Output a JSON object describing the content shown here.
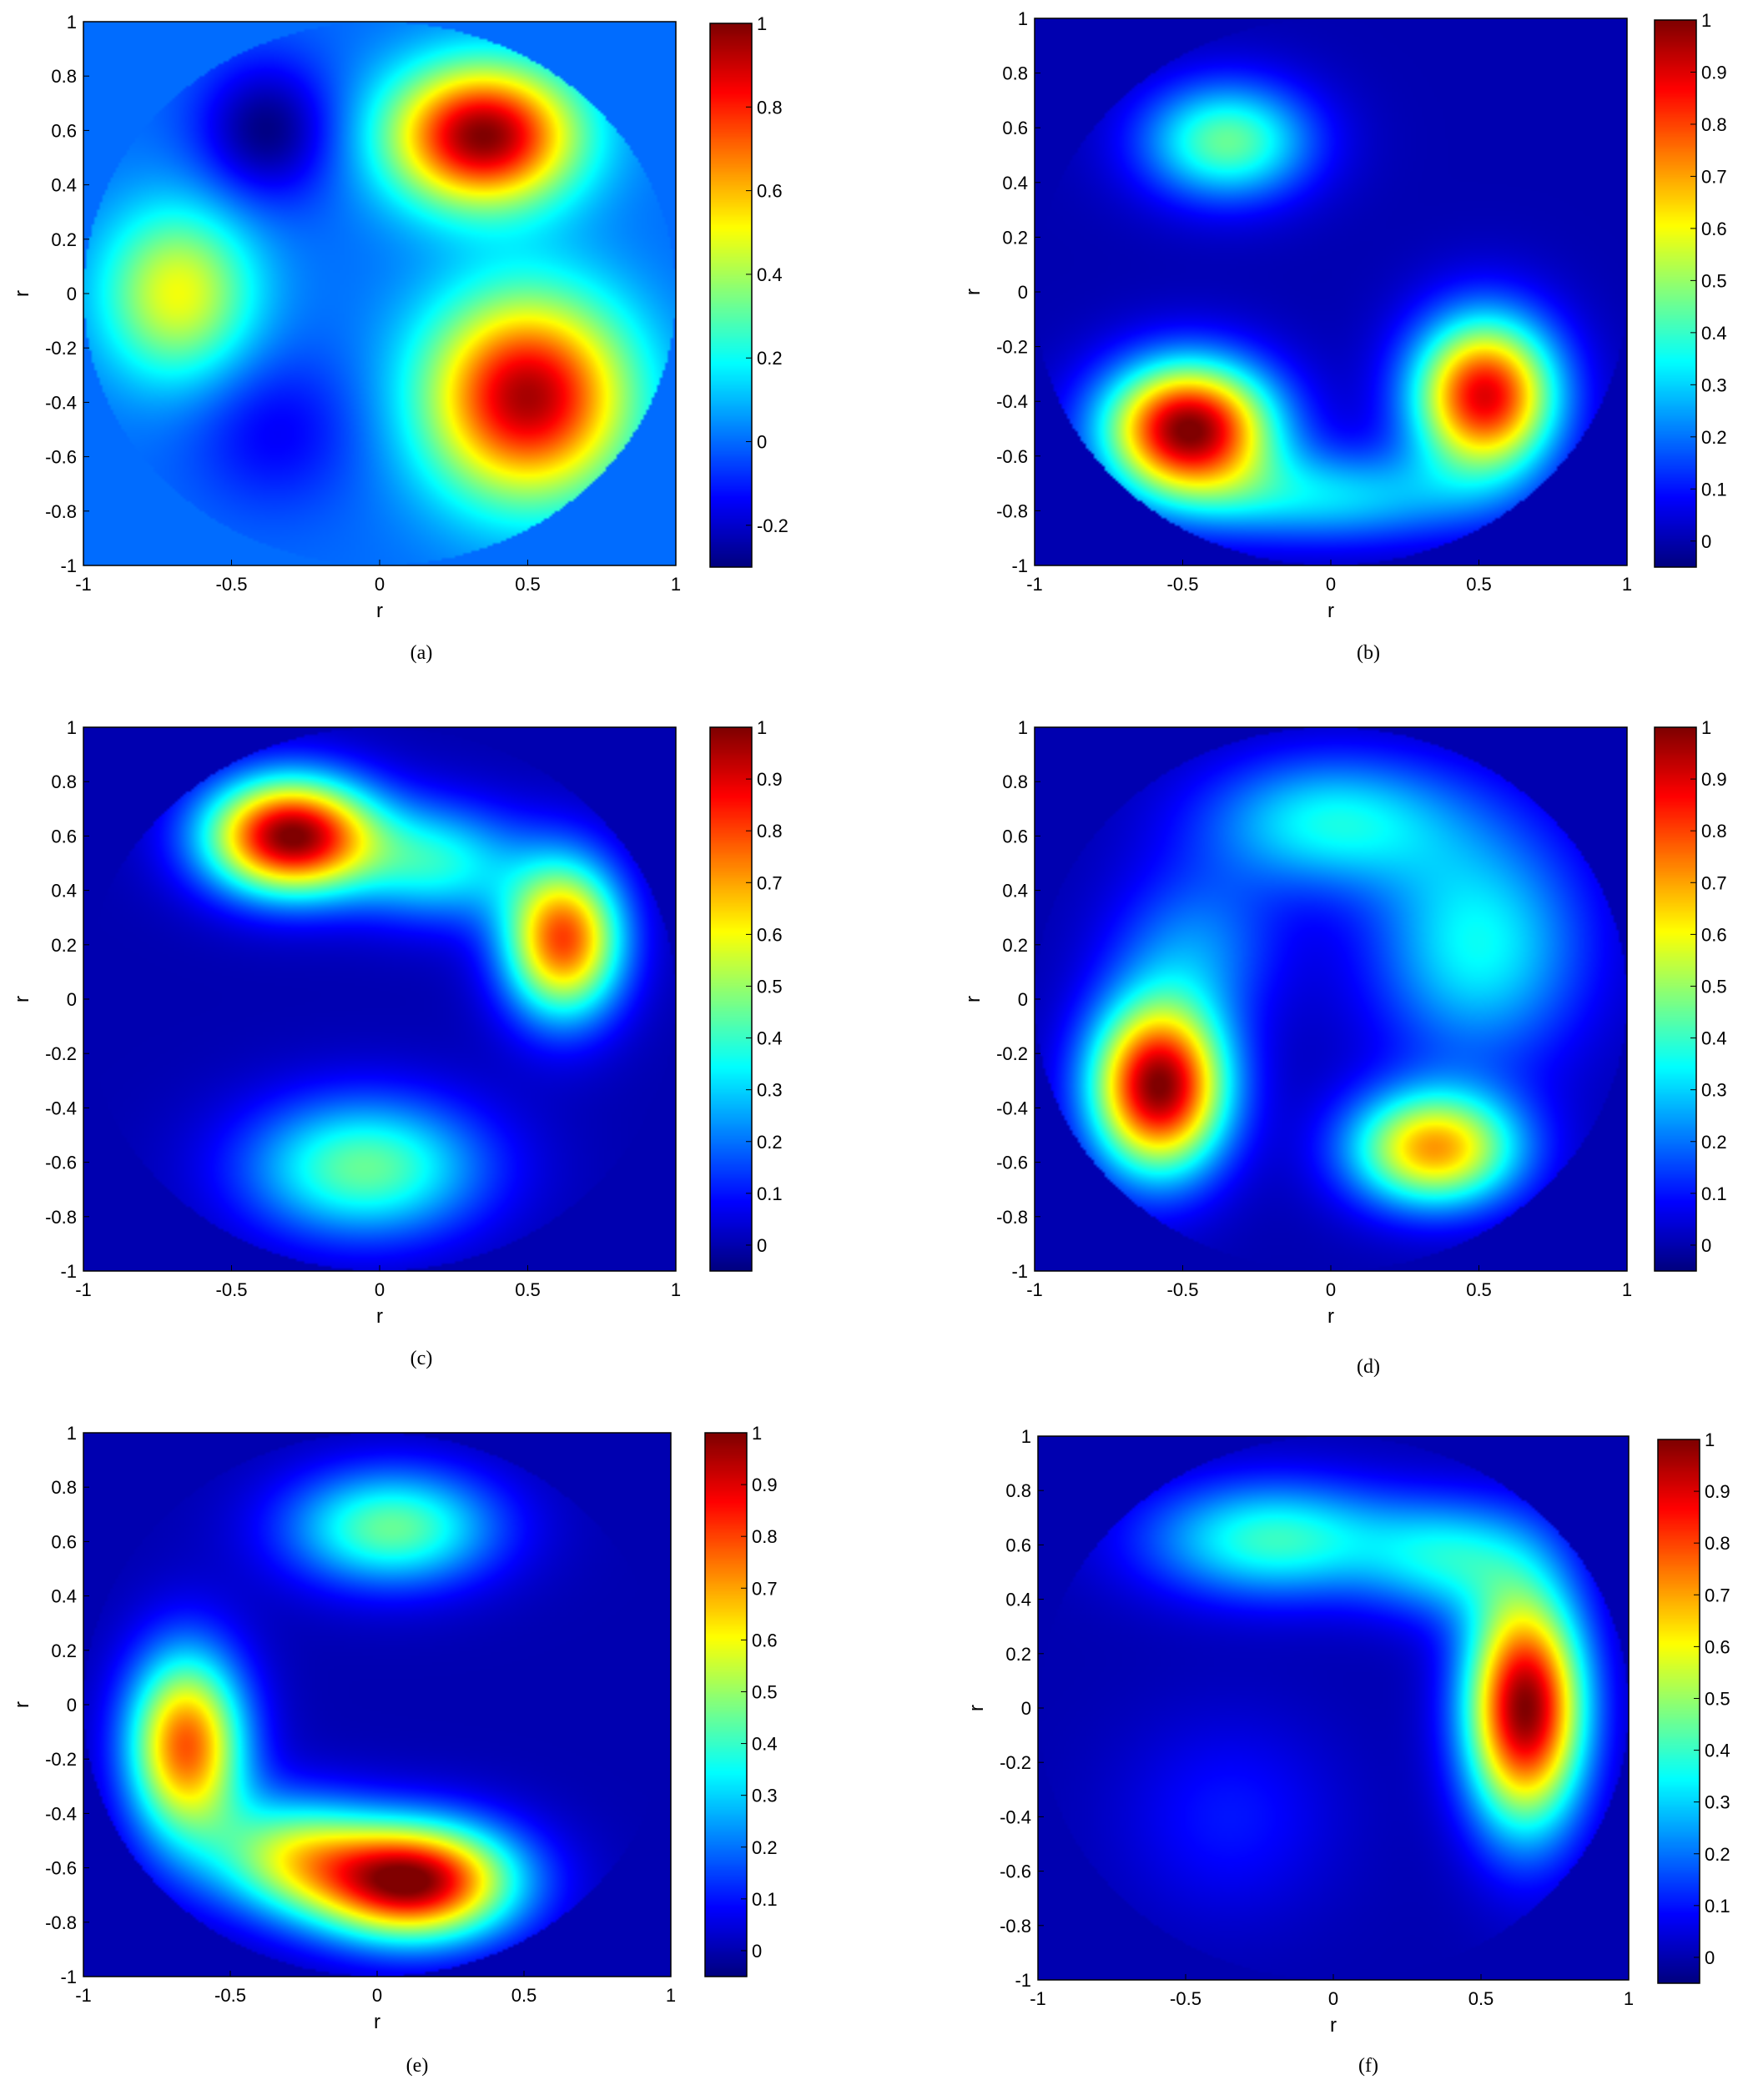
{
  "figure": {
    "panels_label": "Six heat-map panels (a)–(f)"
  },
  "colormap": "jet",
  "chart_data": [
    {
      "type": "heatmap",
      "caption": "(a)",
      "xlabel": "r",
      "ylabel": "r",
      "xlim": [
        -1,
        1
      ],
      "ylim": [
        -1,
        1
      ],
      "xticks": [
        "-1",
        "-0.5",
        "0",
        "0.5",
        "1"
      ],
      "yticks": [
        "1",
        "0.8",
        "0.6",
        "0.4",
        "0.2",
        "0",
        "-0.2",
        "-0.4",
        "-0.6",
        "-0.8",
        "-1"
      ],
      "colorbar": {
        "min": -0.3,
        "max": 1.0,
        "ticks": [
          "1",
          "0.8",
          "0.6",
          "0.4",
          "0.2",
          "0",
          "-0.2"
        ]
      },
      "outside_value": 0.0,
      "peaks": [
        {
          "x": 0.35,
          "y": 0.58,
          "value": 1.0,
          "sx": 0.22,
          "sy": 0.18
        },
        {
          "x": 0.5,
          "y": -0.38,
          "value": 0.95,
          "sx": 0.24,
          "sy": 0.26
        },
        {
          "x": -0.68,
          "y": 0.0,
          "value": 0.5,
          "sx": 0.18,
          "sy": 0.22
        },
        {
          "x": -0.38,
          "y": 0.6,
          "value": -0.3,
          "sx": 0.16,
          "sy": 0.18
        },
        {
          "x": -0.35,
          "y": -0.5,
          "value": -0.15,
          "sx": 0.2,
          "sy": 0.2
        }
      ]
    },
    {
      "type": "heatmap",
      "caption": "(b)",
      "xlabel": "r",
      "ylabel": "r",
      "xlim": [
        -1,
        1
      ],
      "ylim": [
        -1,
        1
      ],
      "xticks": [
        "-1",
        "-0.5",
        "0",
        "0.5",
        "1"
      ],
      "yticks": [
        "1",
        "0.8",
        "0.6",
        "0.4",
        "0.2",
        "0",
        "-0.2",
        "-0.4",
        "-0.6",
        "-0.8",
        "-1"
      ],
      "colorbar": {
        "min": -0.05,
        "max": 1.0,
        "ticks": [
          "1",
          "0.9",
          "0.8",
          "0.7",
          "0.6",
          "0.5",
          "0.4",
          "0.3",
          "0.2",
          "0.1",
          "0"
        ]
      },
      "outside_value": 0.0,
      "peaks": [
        {
          "x": -0.48,
          "y": -0.5,
          "value": 1.0,
          "sx": 0.2,
          "sy": 0.17
        },
        {
          "x": 0.52,
          "y": -0.38,
          "value": 0.9,
          "sx": 0.17,
          "sy": 0.2
        },
        {
          "x": -0.35,
          "y": 0.55,
          "value": 0.45,
          "sx": 0.2,
          "sy": 0.15
        },
        {
          "x": 0.0,
          "y": -0.75,
          "value": 0.3,
          "sx": 0.35,
          "sy": 0.12
        }
      ]
    },
    {
      "type": "heatmap",
      "caption": "(c)",
      "xlabel": "r",
      "ylabel": "r",
      "xlim": [
        -1,
        1
      ],
      "ylim": [
        -1,
        1
      ],
      "xticks": [
        "-1",
        "-0.5",
        "0",
        "0.5",
        "1"
      ],
      "yticks": [
        "1",
        "0.8",
        "0.6",
        "0.4",
        "0.2",
        "0",
        "-0.2",
        "-0.4",
        "-0.6",
        "-0.8",
        "-1"
      ],
      "colorbar": {
        "min": -0.05,
        "max": 1.0,
        "ticks": [
          "1",
          "0.9",
          "0.8",
          "0.7",
          "0.6",
          "0.5",
          "0.4",
          "0.3",
          "0.2",
          "0.1",
          "0"
        ]
      },
      "outside_value": 0.0,
      "peaks": [
        {
          "x": -0.3,
          "y": 0.6,
          "value": 1.0,
          "sx": 0.2,
          "sy": 0.15
        },
        {
          "x": 0.62,
          "y": 0.22,
          "value": 0.8,
          "sx": 0.14,
          "sy": 0.2
        },
        {
          "x": -0.05,
          "y": -0.62,
          "value": 0.45,
          "sx": 0.28,
          "sy": 0.18
        },
        {
          "x": 0.2,
          "y": 0.5,
          "value": 0.35,
          "sx": 0.2,
          "sy": 0.15
        }
      ]
    },
    {
      "type": "heatmap",
      "caption": "(d)",
      "xlabel": "r",
      "ylabel": "r",
      "xlim": [
        -1,
        1
      ],
      "ylim": [
        -1,
        1
      ],
      "xticks": [
        "-1",
        "-0.5",
        "0",
        "0.5",
        "1"
      ],
      "yticks": [
        "1",
        "0.8",
        "0.6",
        "0.4",
        "0.2",
        "0",
        "-0.2",
        "-0.4",
        "-0.6",
        "-0.8",
        "-1"
      ],
      "colorbar": {
        "min": -0.05,
        "max": 1.0,
        "ticks": [
          "1",
          "0.9",
          "0.8",
          "0.7",
          "0.6",
          "0.5",
          "0.4",
          "0.3",
          "0.2",
          "0.1",
          "0"
        ]
      },
      "outside_value": 0.0,
      "peaks": [
        {
          "x": -0.58,
          "y": -0.32,
          "value": 1.0,
          "sx": 0.16,
          "sy": 0.22
        },
        {
          "x": 0.35,
          "y": -0.55,
          "value": 0.7,
          "sx": 0.2,
          "sy": 0.15
        },
        {
          "x": 0.5,
          "y": 0.2,
          "value": 0.35,
          "sx": 0.25,
          "sy": 0.3
        },
        {
          "x": 0.0,
          "y": 0.65,
          "value": 0.35,
          "sx": 0.3,
          "sy": 0.17
        },
        {
          "x": -0.45,
          "y": 0.2,
          "value": 0.2,
          "sx": 0.2,
          "sy": 0.2
        }
      ]
    },
    {
      "type": "heatmap",
      "caption": "(e)",
      "xlabel": "r",
      "ylabel": "r",
      "xlim": [
        -1,
        1
      ],
      "ylim": [
        -1,
        1
      ],
      "xticks": [
        "-1",
        "-0.5",
        "0",
        "0.5",
        "1"
      ],
      "yticks": [
        "1",
        "0.8",
        "0.6",
        "0.4",
        "0.2",
        "0",
        "-0.2",
        "-0.4",
        "-0.6",
        "-0.8",
        "-1"
      ],
      "colorbar": {
        "min": -0.05,
        "max": 1.0,
        "ticks": [
          "1",
          "0.9",
          "0.8",
          "0.7",
          "0.6",
          "0.5",
          "0.4",
          "0.3",
          "0.2",
          "0.1",
          "0"
        ]
      },
      "outside_value": 0.0,
      "peaks": [
        {
          "x": 0.12,
          "y": -0.65,
          "value": 1.0,
          "sx": 0.24,
          "sy": 0.15
        },
        {
          "x": -0.65,
          "y": -0.15,
          "value": 0.78,
          "sx": 0.14,
          "sy": 0.24
        },
        {
          "x": 0.05,
          "y": 0.65,
          "value": 0.45,
          "sx": 0.25,
          "sy": 0.15
        },
        {
          "x": -0.3,
          "y": -0.55,
          "value": 0.45,
          "sx": 0.2,
          "sy": 0.15
        }
      ]
    },
    {
      "type": "heatmap",
      "caption": "(f)",
      "xlabel": "r",
      "ylabel": "r",
      "xlim": [
        -1,
        1
      ],
      "ylim": [
        -1,
        1
      ],
      "xticks": [
        "-1",
        "-0.5",
        "0",
        "0.5",
        "1"
      ],
      "yticks": [
        "1",
        "0.8",
        "0.6",
        "0.4",
        "0.2",
        "0",
        "-0.2",
        "-0.4",
        "-0.6",
        "-0.8",
        "-1"
      ],
      "colorbar": {
        "min": -0.05,
        "max": 1.0,
        "ticks": [
          "1",
          "0.9",
          "0.8",
          "0.7",
          "0.6",
          "0.5",
          "0.4",
          "0.3",
          "0.2",
          "0.1",
          "0"
        ]
      },
      "outside_value": 0.0,
      "peaks": [
        {
          "x": 0.65,
          "y": 0.0,
          "value": 1.0,
          "sx": 0.14,
          "sy": 0.3
        },
        {
          "x": -0.2,
          "y": 0.62,
          "value": 0.4,
          "sx": 0.3,
          "sy": 0.15
        },
        {
          "x": 0.4,
          "y": 0.55,
          "value": 0.3,
          "sx": 0.2,
          "sy": 0.15
        },
        {
          "x": -0.35,
          "y": -0.4,
          "value": 0.1,
          "sx": 0.25,
          "sy": 0.25
        }
      ]
    }
  ]
}
